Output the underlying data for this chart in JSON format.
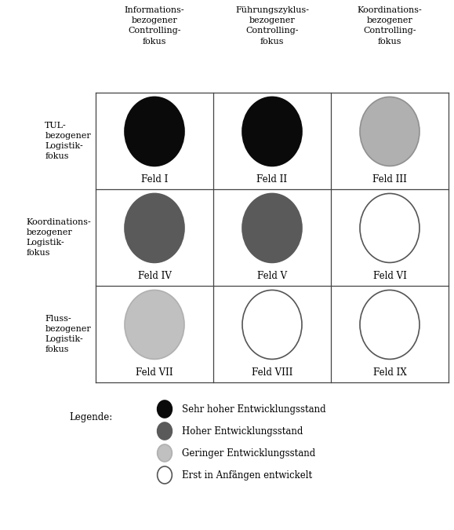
{
  "col_headers": [
    "Informations-\nbezogener\nControlling-\nfokus",
    "Führungszyklus-\nbezogener\nControlling-\nfokus",
    "Koordinations-\nbezogener\nControlling-\nfokus"
  ],
  "row_headers": [
    "TUL-\nbezogener\nLogistik-\nfokus",
    "Koordinations-\nbezogener\nLogistik-\nfokus",
    "Fluss-\nbezogener\nLogistik-\nfokus"
  ],
  "cell_labels": [
    [
      "Feld I",
      "Feld II",
      "Feld III"
    ],
    [
      "Feld IV",
      "Feld V",
      "Feld VI"
    ],
    [
      "Feld VII",
      "Feld VIII",
      "Feld IX"
    ]
  ],
  "circle_colors": [
    [
      "#0a0a0a",
      "#0a0a0a",
      "#b0b0b0"
    ],
    [
      "#5a5a5a",
      "#5a5a5a",
      "#ffffff"
    ],
    [
      "#c0c0c0",
      "#ffffff",
      "#ffffff"
    ]
  ],
  "circle_edge_colors": [
    [
      "#0a0a0a",
      "#0a0a0a",
      "#909090"
    ],
    [
      "#5a5a5a",
      "#5a5a5a",
      "#555555"
    ],
    [
      "#b0b0b0",
      "#555555",
      "#555555"
    ]
  ],
  "legend_items": [
    {
      "color": "#0a0a0a",
      "edge": "#0a0a0a",
      "label": "Sehr hoher Entwicklungsstand"
    },
    {
      "color": "#5a5a5a",
      "edge": "#5a5a5a",
      "label": "Hoher Entwicklungsstand"
    },
    {
      "color": "#c0c0c0",
      "edge": "#b0b0b0",
      "label": "Geringer Entwicklungsstand"
    },
    {
      "color": "#ffffff",
      "edge": "#555555",
      "label": "Erst in Anfängen entwickelt"
    }
  ],
  "legend_title": "Legende:",
  "background_color": "#ffffff",
  "grid_color": "#444444",
  "font_size_header": 8.0,
  "font_size_row": 8.0,
  "font_size_cell": 8.5,
  "font_size_legend": 8.5
}
